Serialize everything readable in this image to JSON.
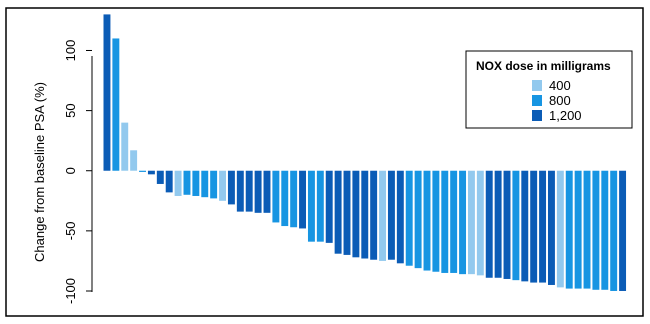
{
  "chart_data": {
    "type": "bar",
    "title": "",
    "xlabel": "",
    "ylabel": "Change from baseline PSA (%)",
    "ylim": [
      -105,
      132
    ],
    "yticks": [
      100,
      50,
      0,
      -50,
      -100
    ],
    "ytick_labels": [
      "100",
      "50",
      "0",
      "-50",
      "-100"
    ],
    "grid": false,
    "legend": {
      "title": "NOX dose in milligrams",
      "placement": "top-right",
      "entries": [
        {
          "label": "400",
          "color": "#92c9ee"
        },
        {
          "label": "800",
          "color": "#1795e2"
        },
        {
          "label": "1,200",
          "color": "#0b5cb6"
        }
      ]
    },
    "bars": [
      {
        "value": 130,
        "dose": "1,200"
      },
      {
        "value": 110,
        "dose": "800"
      },
      {
        "value": 40,
        "dose": "400"
      },
      {
        "value": 17,
        "dose": "400"
      },
      {
        "value": -1,
        "dose": "800"
      },
      {
        "value": -3,
        "dose": "1,200"
      },
      {
        "value": -11,
        "dose": "1,200"
      },
      {
        "value": -18,
        "dose": "1,200"
      },
      {
        "value": -21,
        "dose": "400"
      },
      {
        "value": -20,
        "dose": "800"
      },
      {
        "value": -21,
        "dose": "800"
      },
      {
        "value": -22,
        "dose": "800"
      },
      {
        "value": -23,
        "dose": "800"
      },
      {
        "value": -25,
        "dose": "400"
      },
      {
        "value": -28,
        "dose": "1,200"
      },
      {
        "value": -34,
        "dose": "1,200"
      },
      {
        "value": -34,
        "dose": "1,200"
      },
      {
        "value": -35,
        "dose": "1,200"
      },
      {
        "value": -35,
        "dose": "1,200"
      },
      {
        "value": -43,
        "dose": "800"
      },
      {
        "value": -46,
        "dose": "800"
      },
      {
        "value": -47,
        "dose": "800"
      },
      {
        "value": -48,
        "dose": "1,200"
      },
      {
        "value": -59,
        "dose": "800"
      },
      {
        "value": -59,
        "dose": "800"
      },
      {
        "value": -60,
        "dose": "1,200"
      },
      {
        "value": -69,
        "dose": "1,200"
      },
      {
        "value": -70,
        "dose": "1,200"
      },
      {
        "value": -72,
        "dose": "1,200"
      },
      {
        "value": -73,
        "dose": "1,200"
      },
      {
        "value": -74,
        "dose": "1,200"
      },
      {
        "value": -75,
        "dose": "400"
      },
      {
        "value": -74,
        "dose": "1,200"
      },
      {
        "value": -77,
        "dose": "1,200"
      },
      {
        "value": -79,
        "dose": "800"
      },
      {
        "value": -81,
        "dose": "800"
      },
      {
        "value": -83,
        "dose": "800"
      },
      {
        "value": -84,
        "dose": "800"
      },
      {
        "value": -85,
        "dose": "800"
      },
      {
        "value": -85,
        "dose": "800"
      },
      {
        "value": -86,
        "dose": "800"
      },
      {
        "value": -86,
        "dose": "400"
      },
      {
        "value": -87,
        "dose": "400"
      },
      {
        "value": -89,
        "dose": "1,200"
      },
      {
        "value": -89,
        "dose": "1,200"
      },
      {
        "value": -90,
        "dose": "1,200"
      },
      {
        "value": -91,
        "dose": "800"
      },
      {
        "value": -92,
        "dose": "1,200"
      },
      {
        "value": -93,
        "dose": "1,200"
      },
      {
        "value": -93,
        "dose": "1,200"
      },
      {
        "value": -95,
        "dose": "1,200"
      },
      {
        "value": -97,
        "dose": "400"
      },
      {
        "value": -98,
        "dose": "800"
      },
      {
        "value": -98,
        "dose": "800"
      },
      {
        "value": -98,
        "dose": "800"
      },
      {
        "value": -99,
        "dose": "800"
      },
      {
        "value": -99,
        "dose": "800"
      },
      {
        "value": -100,
        "dose": "800"
      },
      {
        "value": -100,
        "dose": "1,200"
      }
    ]
  }
}
